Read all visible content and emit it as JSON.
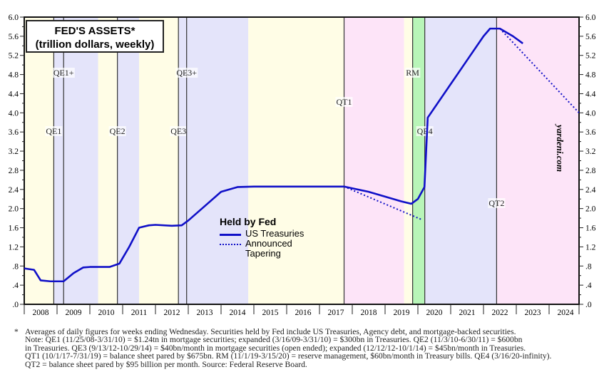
{
  "chart_data": {
    "type": "line",
    "title": "FED'S ASSETS*",
    "subtitle": "(trillion dollars, weekly)",
    "ylim": [
      0,
      6.0
    ],
    "xlim": [
      2008,
      2025
    ],
    "y_ticks": [
      ".0",
      ".4",
      ".8",
      "1.2",
      "1.6",
      "2.0",
      "2.4",
      "2.8",
      "3.2",
      "3.6",
      "4.0",
      "4.4",
      "4.8",
      "5.2",
      "5.6",
      "6.0"
    ],
    "x_tick_labels": [
      "2008",
      "2009",
      "2010",
      "2011",
      "2012",
      "2013",
      "2014",
      "2015",
      "2016",
      "2017",
      "2018",
      "2019",
      "2020",
      "2021",
      "2022",
      "2023",
      "2024"
    ],
    "legend_title": "Held by Fed",
    "legend_placement": "center",
    "series": [
      {
        "name": "US Treasuries",
        "style": "solid",
        "color": "#1010c8",
        "x": [
          2008.0,
          2008.3,
          2008.5,
          2008.8,
          2009.2,
          2009.5,
          2009.8,
          2010.0,
          2010.6,
          2010.9,
          2011.2,
          2011.5,
          2011.8,
          2012.0,
          2012.5,
          2012.8,
          2013.0,
          2013.5,
          2014.0,
          2014.5,
          2015.0,
          2017.75,
          2018.5,
          2019.5,
          2019.8,
          2020.0,
          2020.2,
          2020.3,
          2020.5,
          2021.0,
          2021.5,
          2022.0,
          2022.2,
          2022.5,
          2022.9,
          2023.2
        ],
        "y": [
          0.75,
          0.72,
          0.5,
          0.48,
          0.48,
          0.65,
          0.77,
          0.78,
          0.78,
          0.85,
          1.2,
          1.6,
          1.65,
          1.66,
          1.64,
          1.65,
          1.75,
          2.05,
          2.35,
          2.45,
          2.46,
          2.46,
          2.35,
          2.15,
          2.1,
          2.2,
          2.45,
          3.9,
          4.1,
          4.6,
          5.1,
          5.6,
          5.76,
          5.76,
          5.6,
          5.45
        ]
      },
      {
        "name": "Announced Tapering",
        "style": "dotted",
        "color": "#1010c8",
        "segments": [
          {
            "x": [
              2017.75,
              2020.15
            ],
            "y": [
              2.46,
              1.76
            ]
          },
          {
            "x": [
              2022.5,
              2025.0
            ],
            "y": [
              5.76,
              4.0
            ]
          }
        ]
      }
    ],
    "periods": [
      {
        "label": "QE1",
        "date": 2008.9
      },
      {
        "label": "QE1+",
        "date": 2009.2
      },
      {
        "label": "QE2",
        "date": 2010.84
      },
      {
        "label": "QE3",
        "date": 2012.7
      },
      {
        "label": "QE3+",
        "date": 2012.95
      },
      {
        "label": "QT1",
        "date": 2017.75
      },
      {
        "label": "RM",
        "date": 2019.84
      },
      {
        "label": "QE4",
        "date": 2020.21
      },
      {
        "label": "QT2",
        "date": 2022.4
      }
    ],
    "bands": [
      {
        "from": 2008,
        "to": 2008.9,
        "color": "#fffde6"
      },
      {
        "from": 2008.9,
        "to": 2010.25,
        "color": "#e4e4fa"
      },
      {
        "from": 2010.25,
        "to": 2010.84,
        "color": "#fffde6"
      },
      {
        "from": 2010.84,
        "to": 2011.5,
        "color": "#e4e4fa"
      },
      {
        "from": 2011.5,
        "to": 2012.7,
        "color": "#fffde6"
      },
      {
        "from": 2012.7,
        "to": 2014.83,
        "color": "#e4e4fa"
      },
      {
        "from": 2014.83,
        "to": 2017.75,
        "color": "#fffde6"
      },
      {
        "from": 2017.75,
        "to": 2019.58,
        "color": "#fde4f8"
      },
      {
        "from": 2019.58,
        "to": 2019.84,
        "color": "#fffde6"
      },
      {
        "from": 2019.84,
        "to": 2020.21,
        "color": "#b8f5b8"
      },
      {
        "from": 2020.21,
        "to": 2022.4,
        "color": "#e4e4fa"
      },
      {
        "from": 2022.4,
        "to": 2025,
        "color": "#fde4f8"
      }
    ],
    "grid": false
  },
  "watermark": "yardeni.com",
  "footnote": {
    "star": "*",
    "lines": [
      "Averages of daily figures for weeks ending Wednesday. Securities held by Fed include US Treasuries, Agency debt, and mortgage-backed securities.",
      "Note: QE1 (11/25/08-3/31/10) = $1.24tn in mortgage securities; expanded (3/16/09-3/31/10) = $300bn in Treasuries. QE2 (11/3/10-6/30/11) = $600bn",
      "in Treasuries. QE3 (9/13/12-10/29/14) = $40bn/month in mortgage securities (open ended); expanded (12/12/12-10/1/14) = $45bn/month in Treasuries.",
      "QT1 (10/1/17-7/31/19) = balance sheet pared by $675bn. RM (11/1/19-3/15/20) = reserve management, $60bn/month in Treasury bills. QE4 (3/16/20-infinity).",
      "QT2 = balance sheet pared by $95 billion per month. Source: Federal Reserve Board."
    ]
  }
}
